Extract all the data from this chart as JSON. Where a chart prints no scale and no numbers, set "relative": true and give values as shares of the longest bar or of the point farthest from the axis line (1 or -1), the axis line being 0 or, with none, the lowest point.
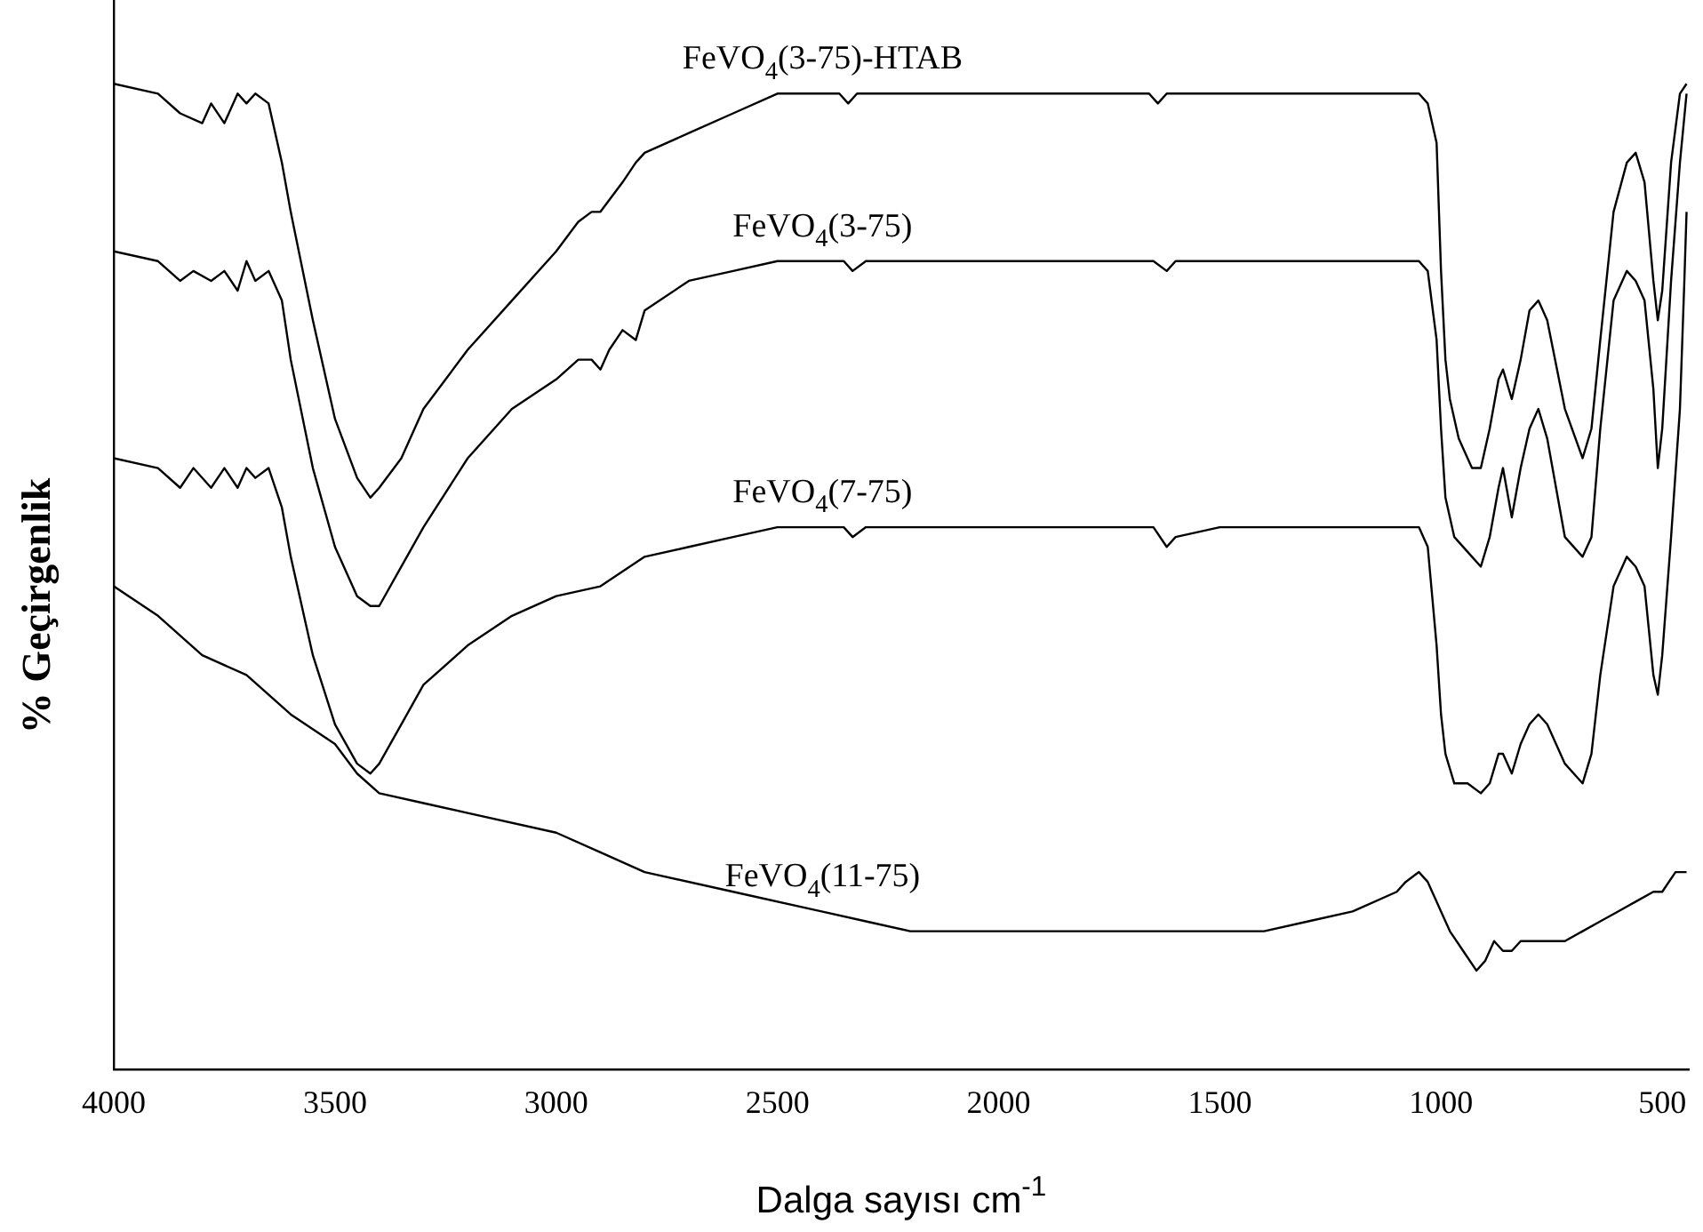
{
  "chart_data": {
    "type": "line",
    "relative": true,
    "xlabel": "Dalga sayısı cm$^{-1}$",
    "ylabel": "% Geçirgenlik",
    "xlim": [
      4000,
      440
    ],
    "xticks": [
      4000,
      3500,
      3000,
      2500,
      2000,
      1500,
      1000,
      500
    ],
    "series": [
      {
        "name": "FeVO$_{4}$(3-75)-HTAB",
        "color": "#000000",
        "x": [
          4000,
          3900,
          3850,
          3800,
          3780,
          3750,
          3720,
          3700,
          3680,
          3650,
          3620,
          3600,
          3550,
          3500,
          3450,
          3420,
          3400,
          3350,
          3300,
          3200,
          3100,
          3000,
          2950,
          2920,
          2900,
          2850,
          2820,
          2800,
          2700,
          2600,
          2500,
          2400,
          2360,
          2340,
          2320,
          2300,
          2200,
          2000,
          1800,
          1660,
          1640,
          1620,
          1500,
          1200,
          1050,
          1030,
          1010,
          1000,
          990,
          980,
          960,
          930,
          910,
          890,
          870,
          860,
          840,
          820,
          800,
          780,
          760,
          720,
          680,
          660,
          640,
          610,
          580,
          560,
          540,
          520,
          510,
          500,
          480,
          460,
          445
        ],
        "values": [
          1.0,
          0.99,
          0.97,
          0.96,
          0.98,
          0.96,
          0.99,
          0.98,
          0.99,
          0.98,
          0.92,
          0.87,
          0.76,
          0.66,
          0.6,
          0.58,
          0.59,
          0.62,
          0.67,
          0.73,
          0.78,
          0.83,
          0.86,
          0.87,
          0.87,
          0.9,
          0.92,
          0.93,
          0.95,
          0.97,
          0.99,
          0.99,
          0.99,
          0.98,
          0.99,
          0.99,
          0.99,
          0.99,
          0.99,
          0.99,
          0.98,
          0.99,
          0.99,
          0.99,
          0.99,
          0.98,
          0.94,
          0.81,
          0.72,
          0.68,
          0.64,
          0.61,
          0.61,
          0.65,
          0.7,
          0.71,
          0.68,
          0.72,
          0.77,
          0.78,
          0.76,
          0.67,
          0.62,
          0.65,
          0.74,
          0.87,
          0.92,
          0.93,
          0.9,
          0.8,
          0.76,
          0.79,
          0.92,
          0.99,
          1.0
        ]
      },
      {
        "name": "FeVO$_{4}$(3-75)",
        "color": "#000000",
        "x": [
          4000,
          3900,
          3850,
          3820,
          3780,
          3750,
          3720,
          3700,
          3680,
          3650,
          3620,
          3600,
          3550,
          3500,
          3450,
          3420,
          3400,
          3350,
          3300,
          3200,
          3100,
          3000,
          2950,
          2920,
          2900,
          2880,
          2850,
          2820,
          2800,
          2700,
          2600,
          2500,
          2400,
          2350,
          2330,
          2300,
          2200,
          2000,
          1800,
          1650,
          1620,
          1600,
          1500,
          1200,
          1050,
          1030,
          1010,
          1000,
          990,
          970,
          930,
          910,
          890,
          870,
          860,
          840,
          820,
          800,
          780,
          760,
          720,
          680,
          660,
          640,
          610,
          580,
          560,
          540,
          520,
          510,
          500,
          480,
          460,
          445
        ],
        "values": [
          0.83,
          0.82,
          0.8,
          0.81,
          0.8,
          0.81,
          0.79,
          0.82,
          0.8,
          0.81,
          0.78,
          0.72,
          0.61,
          0.53,
          0.48,
          0.47,
          0.47,
          0.51,
          0.55,
          0.62,
          0.67,
          0.7,
          0.72,
          0.72,
          0.71,
          0.73,
          0.75,
          0.74,
          0.77,
          0.8,
          0.81,
          0.82,
          0.82,
          0.82,
          0.81,
          0.82,
          0.82,
          0.82,
          0.82,
          0.82,
          0.81,
          0.82,
          0.82,
          0.82,
          0.82,
          0.81,
          0.74,
          0.65,
          0.58,
          0.54,
          0.52,
          0.51,
          0.54,
          0.59,
          0.61,
          0.56,
          0.61,
          0.65,
          0.67,
          0.64,
          0.54,
          0.52,
          0.54,
          0.65,
          0.78,
          0.81,
          0.8,
          0.78,
          0.69,
          0.61,
          0.65,
          0.8,
          0.92,
          0.99
        ]
      },
      {
        "name": "FeVO$_{4}$(7-75)",
        "color": "#000000",
        "x": [
          4000,
          3900,
          3850,
          3820,
          3780,
          3750,
          3720,
          3700,
          3680,
          3650,
          3620,
          3600,
          3550,
          3500,
          3450,
          3420,
          3400,
          3350,
          3300,
          3200,
          3100,
          3000,
          2900,
          2800,
          2700,
          2600,
          2500,
          2400,
          2350,
          2330,
          2300,
          2200,
          2000,
          1800,
          1650,
          1620,
          1600,
          1500,
          1200,
          1050,
          1030,
          1010,
          1000,
          990,
          970,
          940,
          910,
          890,
          870,
          860,
          840,
          820,
          800,
          780,
          760,
          720,
          680,
          660,
          640,
          610,
          580,
          560,
          540,
          520,
          510,
          500,
          480,
          460,
          450,
          445
        ],
        "values": [
          0.62,
          0.61,
          0.59,
          0.61,
          0.59,
          0.61,
          0.59,
          0.61,
          0.6,
          0.61,
          0.57,
          0.52,
          0.42,
          0.35,
          0.31,
          0.3,
          0.31,
          0.35,
          0.39,
          0.43,
          0.46,
          0.48,
          0.49,
          0.52,
          0.53,
          0.54,
          0.55,
          0.55,
          0.55,
          0.54,
          0.55,
          0.55,
          0.55,
          0.55,
          0.55,
          0.53,
          0.54,
          0.55,
          0.55,
          0.55,
          0.53,
          0.43,
          0.36,
          0.32,
          0.29,
          0.29,
          0.28,
          0.29,
          0.32,
          0.32,
          0.3,
          0.33,
          0.35,
          0.36,
          0.35,
          0.31,
          0.29,
          0.32,
          0.4,
          0.49,
          0.52,
          0.51,
          0.49,
          0.4,
          0.38,
          0.42,
          0.54,
          0.67,
          0.8,
          0.87
        ]
      },
      {
        "name": "FeVO$_{4}$(11-75)",
        "color": "#000000",
        "x": [
          4000,
          3900,
          3800,
          3700,
          3600,
          3500,
          3450,
          3400,
          3300,
          3200,
          3000,
          2900,
          2800,
          2600,
          2400,
          2300,
          2200,
          2000,
          1800,
          1600,
          1400,
          1300,
          1200,
          1100,
          1080,
          1050,
          1030,
          1000,
          980,
          950,
          920,
          900,
          880,
          860,
          840,
          820,
          780,
          720,
          680,
          640,
          600,
          560,
          520,
          500,
          470,
          445
        ],
        "values": [
          0.49,
          0.46,
          0.42,
          0.4,
          0.36,
          0.33,
          0.3,
          0.28,
          0.27,
          0.26,
          0.24,
          0.22,
          0.2,
          0.18,
          0.16,
          0.15,
          0.14,
          0.14,
          0.14,
          0.14,
          0.14,
          0.15,
          0.16,
          0.18,
          0.19,
          0.2,
          0.19,
          0.16,
          0.14,
          0.12,
          0.1,
          0.11,
          0.13,
          0.12,
          0.12,
          0.13,
          0.13,
          0.13,
          0.14,
          0.15,
          0.16,
          0.17,
          0.18,
          0.18,
          0.2,
          0.2
        ]
      }
    ]
  }
}
